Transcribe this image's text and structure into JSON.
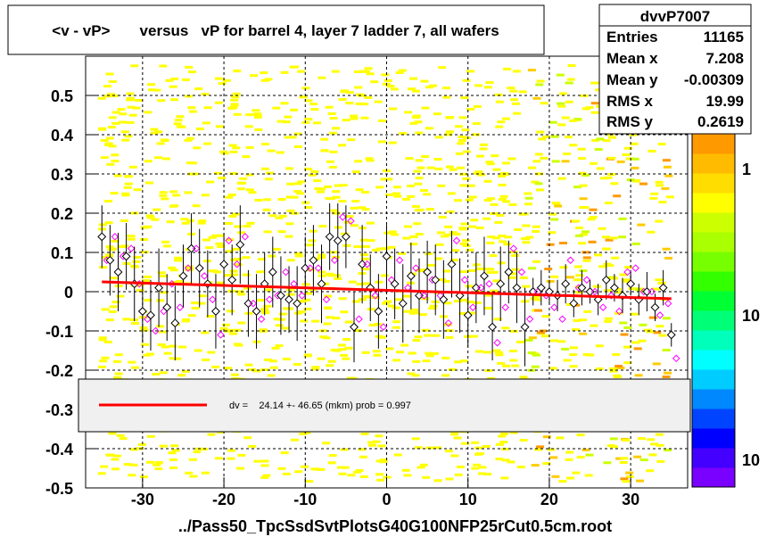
{
  "title": "<v - vP>       versus   vP for barrel 4, layer 7 ladder 7, all wafers",
  "footer": "../Pass50_TpcSsdSvtPlotsG40G100NFP25rCut0.5cm.root",
  "stats": {
    "name": "dvvP7007",
    "rows": [
      {
        "label": "Entries",
        "value": "11165"
      },
      {
        "label": "Mean x",
        "value": "7.208"
      },
      {
        "label": "Mean y",
        "value": "-0.00309"
      },
      {
        "label": "RMS x",
        "value": "19.99"
      },
      {
        "label": "RMS y",
        "value": "0.2619"
      }
    ]
  },
  "fit_legend": "dv =    24.14 +- 46.65 (mkm) prob = 0.997",
  "colorbar": {
    "labels": [
      "1",
      "10",
      "10"
    ]
  },
  "colors": {
    "fit_line": "#ff0000",
    "profile_open": "#000000",
    "profile_magenta": "#ff00ff",
    "scatter": "#ffff00"
  },
  "chart_data": {
    "type": "scatter",
    "xlim": [
      -37,
      37
    ],
    "ylim": [
      -0.5,
      0.6
    ],
    "xticks": [
      "-30",
      "-20",
      "-10",
      "0",
      "10",
      "20",
      "30"
    ],
    "yticks": [
      "-0.5",
      "-0.4",
      "-0.3",
      "-0.2",
      "-0.1",
      "0",
      "0.1",
      "0.2",
      "0.3",
      "0.4",
      "0.5"
    ],
    "grid": true,
    "fit_line": {
      "x": [
        -35,
        35
      ],
      "y": [
        0.025,
        -0.018
      ]
    },
    "series": [
      {
        "marker": "open-black",
        "x": [
          -35,
          -34,
          -33,
          -32,
          -31,
          -30,
          -29,
          -28,
          -27,
          -26,
          -25,
          -24,
          -23,
          -22,
          -21,
          -20,
          -19,
          -18,
          -17,
          -16,
          -15,
          -14,
          -13,
          -12,
          -11,
          -10,
          -9,
          -8,
          -7,
          -6,
          -5,
          -4,
          -3,
          -2,
          -1,
          0,
          1,
          2,
          3,
          4,
          5,
          6,
          7,
          8,
          9,
          10,
          11,
          12,
          13,
          14,
          15,
          16,
          17,
          18,
          19,
          20,
          21,
          22,
          23,
          24,
          25,
          26,
          27,
          28,
          29,
          30,
          31,
          32,
          33,
          34,
          35
        ],
        "y": [
          0.14,
          0.08,
          0.05,
          0.09,
          0.02,
          -0.05,
          -0.06,
          0.01,
          -0.04,
          -0.08,
          0.04,
          0.11,
          0.06,
          0.02,
          -0.05,
          0.07,
          0.03,
          0.12,
          -0.03,
          -0.05,
          0.02,
          0.05,
          -0.01,
          -0.02,
          -0.03,
          0.06,
          0.08,
          0.02,
          0.14,
          0.13,
          0.14,
          -0.09,
          0.07,
          0.01,
          -0.05,
          0.09,
          0.02,
          -0.03,
          0.04,
          -0.01,
          0.05,
          0.03,
          -0.02,
          0.07,
          -0.01,
          -0.06,
          0.01,
          0.04,
          -0.09,
          0.02,
          0.05,
          0.01,
          -0.09,
          0.0,
          0.01,
          0.0,
          -0.01,
          0.02,
          -0.03,
          0.01,
          0.0,
          -0.02,
          0.03,
          0.01,
          -0.01,
          0.02,
          -0.02,
          0.0,
          -0.04,
          0.01,
          -0.11
        ]
      }
    ]
  }
}
